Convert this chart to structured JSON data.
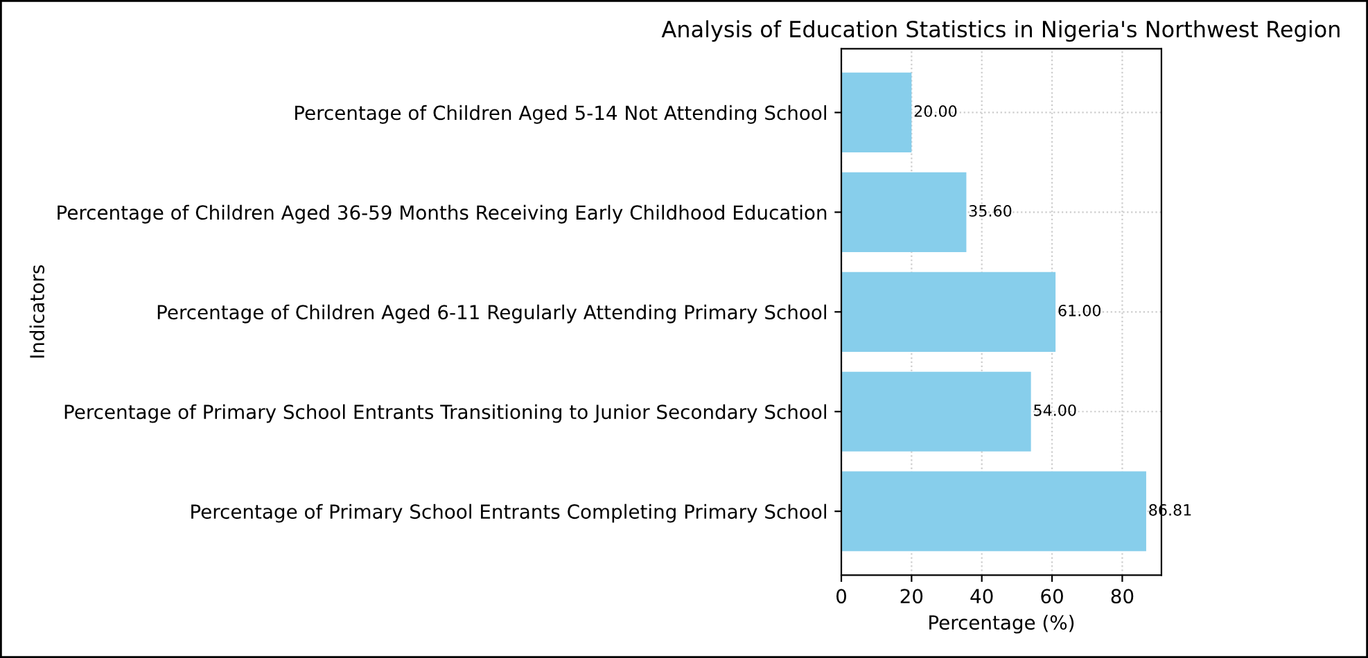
{
  "chart_data": {
    "type": "bar",
    "orientation": "horizontal",
    "title": "Analysis of Education Statistics in Nigeria's Northwest Region",
    "xlabel": "Percentage (%)",
    "ylabel": "Indicators",
    "categories": [
      "Percentage of Children Aged 5-14 Not Attending School",
      "Percentage of Children Aged 36-59 Months Receiving Early Childhood Education",
      "Percentage of Children Aged 6-11 Regularly Attending Primary School",
      "Percentage of Primary School Entrants Transitioning to Junior Secondary School",
      "Percentage of Primary School Entrants Completing Primary School"
    ],
    "values": [
      20.0,
      35.6,
      61.0,
      54.0,
      86.81
    ],
    "value_labels": [
      "20.00",
      "35.60",
      "61.00",
      "54.00",
      "86.81"
    ],
    "color": "#87ceeb",
    "xlim": [
      0,
      91.15
    ],
    "xticks": [
      0,
      20,
      40,
      60,
      80
    ],
    "grid": true
  }
}
